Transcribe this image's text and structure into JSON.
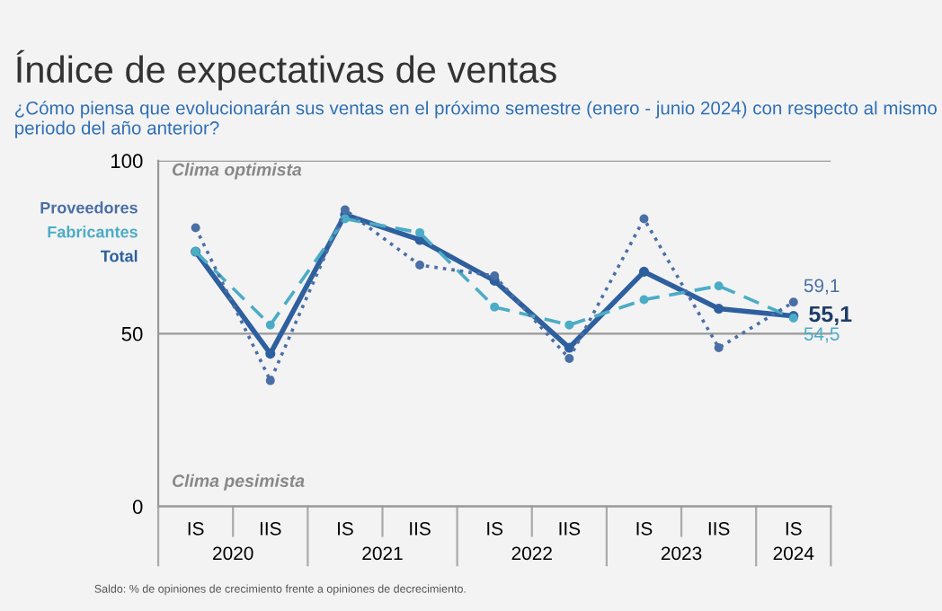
{
  "chart_data": {
    "type": "line",
    "title": "Índice de expectativas de ventas",
    "subtitle": "¿Cómo piensa que evolucionarán sus ventas en el próximo semestre (enero - junio 2024) con respecto al mismo periodo del año anterior?",
    "categories": [
      "IS",
      "IIS",
      "IS",
      "IIS",
      "IS",
      "IIS",
      "IS",
      "IIS",
      "IS"
    ],
    "series": [
      {
        "name": "Proveedores",
        "color": "#4a6fa5",
        "line_style": "dotted",
        "values": [
          80.6,
          36.4,
          85.8,
          69.8,
          66.7,
          42.8,
          83.2,
          45.9,
          59.1
        ],
        "value_labels": [
          null,
          null,
          null,
          null,
          null,
          null,
          null,
          null,
          "59,1"
        ]
      },
      {
        "name": "Fabricantes",
        "color": "#4bacc6",
        "line_style": "dashed",
        "values": [
          73.7,
          52.5,
          83.2,
          79.2,
          57.7,
          52.5,
          59.8,
          63.8,
          54.5
        ],
        "value_labels": [
          null,
          null,
          null,
          null,
          null,
          null,
          null,
          null,
          "54,5"
        ]
      },
      {
        "name": "Total",
        "color": "#2e5f9e",
        "line_style": "solid",
        "values": [
          73.7,
          44.2,
          84.4,
          77.1,
          65.3,
          45.9,
          67.9,
          57.2,
          55.1
        ],
        "value_labels": [
          null,
          null,
          null,
          null,
          null,
          null,
          null,
          null,
          "55,1"
        ]
      }
    ],
    "ylim": [
      0,
      100
    ],
    "yticks": [
      0,
      50,
      100
    ],
    "grid": "y",
    "marker": "circle",
    "annotations": [
      "Clima optimista",
      "Clima pesimista",
      "2020",
      "2021",
      "2022",
      "2023",
      "2024",
      "Saldo: % de opiniones de crecimiento frente a opiniones de decrecimiento."
    ]
  }
}
